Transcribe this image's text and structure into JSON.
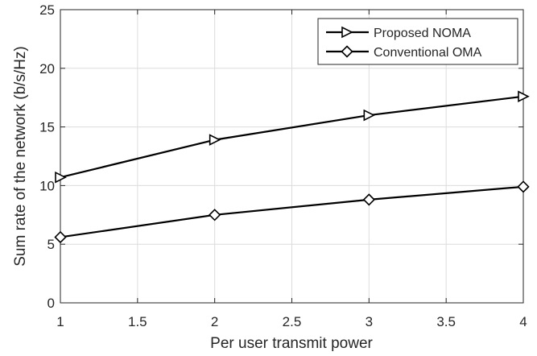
{
  "chart_data": {
    "type": "line",
    "xlabel": "Per user transmit power",
    "ylabel": "Sum rate of the network (b/s/Hz)",
    "xlim": [
      1,
      4
    ],
    "ylim": [
      0,
      25
    ],
    "xticks": [
      1,
      1.5,
      2,
      2.5,
      3,
      3.5,
      4
    ],
    "xtick_labels": [
      "1",
      "1.5",
      "2",
      "2.5",
      "3",
      "3.5",
      "4"
    ],
    "yticks": [
      0,
      5,
      10,
      15,
      20,
      25
    ],
    "ytick_labels": [
      "0",
      "5",
      "10",
      "15",
      "20",
      "25"
    ],
    "grid": true,
    "legend_position": "top-right",
    "series": [
      {
        "name": "Proposed NOMA",
        "marker": "triangle-right",
        "color": "#000000",
        "x": [
          1,
          2,
          3,
          4
        ],
        "y": [
          10.7,
          13.9,
          16.0,
          17.6
        ]
      },
      {
        "name": "Conventional OMA",
        "marker": "diamond",
        "color": "#000000",
        "x": [
          1,
          2,
          3,
          4
        ],
        "y": [
          5.6,
          7.5,
          8.8,
          9.9
        ]
      }
    ]
  }
}
